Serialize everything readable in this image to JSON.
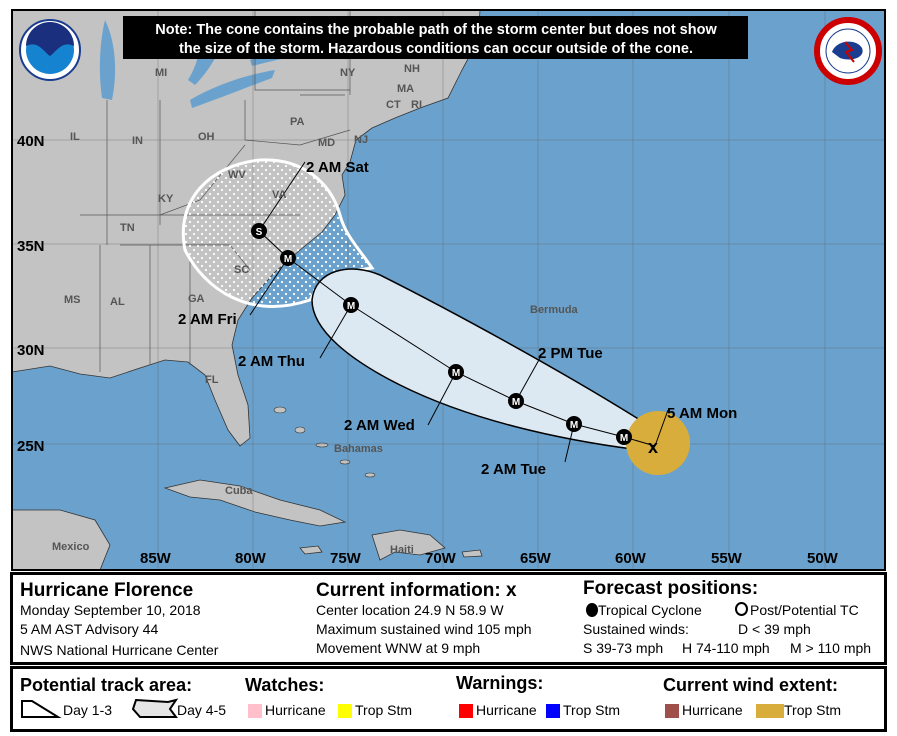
{
  "note": {
    "line1": "Note: The cone contains the probable path of the storm center but does not show",
    "line2": "the size of the storm. Hazardous conditions can occur outside of the cone."
  },
  "logos": {
    "noaa": "NOAA",
    "nws": "NATIONAL WEATHER SERVICE"
  },
  "map": {
    "lat_ticks": [
      "40N",
      "35N",
      "30N",
      "25N"
    ],
    "lon_ticks": [
      "85W",
      "80W",
      "75W",
      "70W",
      "65W",
      "60W",
      "55W",
      "50W"
    ],
    "states": [
      "MI",
      "NY",
      "NH",
      "MA",
      "CT",
      "RI",
      "PA",
      "NJ",
      "IL",
      "IN",
      "OH",
      "WV",
      "VA",
      "KY",
      "TN",
      "SC",
      "MS",
      "AL",
      "GA",
      "FL",
      "MD"
    ],
    "places": [
      "Bermuda",
      "Bahamas",
      "Cuba",
      "Haiti",
      "Mexico"
    ],
    "points": [
      {
        "marker": "M",
        "label": ""
      },
      {
        "marker": "M",
        "label": "2 AM Tue"
      },
      {
        "marker": "M",
        "label": "2 PM Tue"
      },
      {
        "marker": "M",
        "label": "2 AM Wed"
      },
      {
        "marker": "M",
        "label": "2 AM Thu"
      },
      {
        "marker": "M",
        "label": "2 AM Fri"
      },
      {
        "marker": "S",
        "label": "2 AM Sat"
      }
    ],
    "current_label": "5 AM Mon",
    "colors": {
      "ocean": "#6ba2cd",
      "land": "#c3c3c3",
      "cone": "#dde9f2",
      "trop_stm_wind": "#d9ad3c"
    }
  },
  "info": {
    "storm_name": "Hurricane Florence",
    "date": "Monday September 10, 2018",
    "advisory": "5 AM AST Advisory 44",
    "center": "NWS National Hurricane Center",
    "current_title": "Current information:",
    "current_icon": "x",
    "location": "Center location 24.9 N 58.9 W",
    "max_wind": "Maximum sustained wind 105 mph",
    "movement": "Movement WNW at 9 mph",
    "forecast_title": "Forecast positions:",
    "tropical_cyclone": "Tropical Cyclone",
    "post_potential": "Post/Potential TC",
    "sustained_winds": "Sustained winds:",
    "d_range": "D < 39 mph",
    "s_range": "S 39-73 mph",
    "h_range": "H 74-110 mph",
    "m_range": "M > 110 mph"
  },
  "legend": {
    "track_title": "Potential track area:",
    "day13": "Day 1-3",
    "day45": "Day 4-5",
    "watches_title": "Watches:",
    "warnings_title": "Warnings:",
    "wind_title": "Current wind extent:",
    "hurricane": "Hurricane",
    "trop_stm": "Trop Stm",
    "colors": {
      "watch_hurricane": "#ffc0cb",
      "watch_ts": "#ffff00",
      "warn_hurricane": "#ff0000",
      "warn_ts": "#0000ff",
      "wind_hurricane": "#a0504a",
      "wind_ts": "#d9ad3c"
    }
  }
}
